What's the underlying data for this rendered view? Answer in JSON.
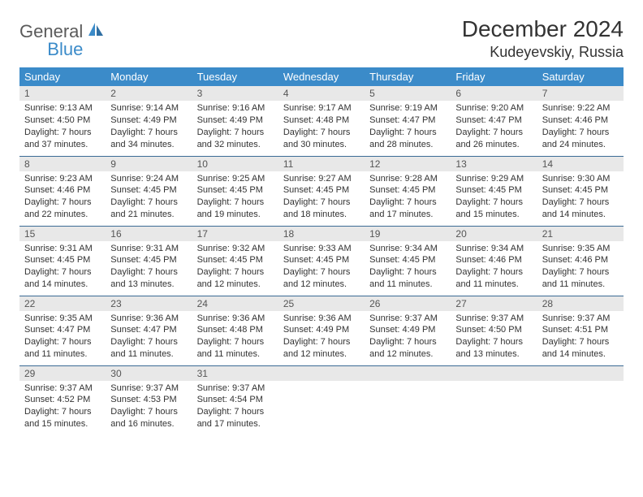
{
  "brand": {
    "part1": "General",
    "part2": "Blue"
  },
  "title": "December 2024",
  "location": "Kudeyevskiy, Russia",
  "colors": {
    "header_bg": "#3b8bc9",
    "header_text": "#ffffff",
    "daynum_bg": "#e8e8e8",
    "row_border": "#3b6b95",
    "logo_gray": "#5a5a5a",
    "logo_blue": "#3b8bc9"
  },
  "weekdays": [
    "Sunday",
    "Monday",
    "Tuesday",
    "Wednesday",
    "Thursday",
    "Friday",
    "Saturday"
  ],
  "weeks": [
    [
      {
        "n": "1",
        "sr": "Sunrise: 9:13 AM",
        "ss": "Sunset: 4:50 PM",
        "d1": "Daylight: 7 hours",
        "d2": "and 37 minutes."
      },
      {
        "n": "2",
        "sr": "Sunrise: 9:14 AM",
        "ss": "Sunset: 4:49 PM",
        "d1": "Daylight: 7 hours",
        "d2": "and 34 minutes."
      },
      {
        "n": "3",
        "sr": "Sunrise: 9:16 AM",
        "ss": "Sunset: 4:49 PM",
        "d1": "Daylight: 7 hours",
        "d2": "and 32 minutes."
      },
      {
        "n": "4",
        "sr": "Sunrise: 9:17 AM",
        "ss": "Sunset: 4:48 PM",
        "d1": "Daylight: 7 hours",
        "d2": "and 30 minutes."
      },
      {
        "n": "5",
        "sr": "Sunrise: 9:19 AM",
        "ss": "Sunset: 4:47 PM",
        "d1": "Daylight: 7 hours",
        "d2": "and 28 minutes."
      },
      {
        "n": "6",
        "sr": "Sunrise: 9:20 AM",
        "ss": "Sunset: 4:47 PM",
        "d1": "Daylight: 7 hours",
        "d2": "and 26 minutes."
      },
      {
        "n": "7",
        "sr": "Sunrise: 9:22 AM",
        "ss": "Sunset: 4:46 PM",
        "d1": "Daylight: 7 hours",
        "d2": "and 24 minutes."
      }
    ],
    [
      {
        "n": "8",
        "sr": "Sunrise: 9:23 AM",
        "ss": "Sunset: 4:46 PM",
        "d1": "Daylight: 7 hours",
        "d2": "and 22 minutes."
      },
      {
        "n": "9",
        "sr": "Sunrise: 9:24 AM",
        "ss": "Sunset: 4:45 PM",
        "d1": "Daylight: 7 hours",
        "d2": "and 21 minutes."
      },
      {
        "n": "10",
        "sr": "Sunrise: 9:25 AM",
        "ss": "Sunset: 4:45 PM",
        "d1": "Daylight: 7 hours",
        "d2": "and 19 minutes."
      },
      {
        "n": "11",
        "sr": "Sunrise: 9:27 AM",
        "ss": "Sunset: 4:45 PM",
        "d1": "Daylight: 7 hours",
        "d2": "and 18 minutes."
      },
      {
        "n": "12",
        "sr": "Sunrise: 9:28 AM",
        "ss": "Sunset: 4:45 PM",
        "d1": "Daylight: 7 hours",
        "d2": "and 17 minutes."
      },
      {
        "n": "13",
        "sr": "Sunrise: 9:29 AM",
        "ss": "Sunset: 4:45 PM",
        "d1": "Daylight: 7 hours",
        "d2": "and 15 minutes."
      },
      {
        "n": "14",
        "sr": "Sunrise: 9:30 AM",
        "ss": "Sunset: 4:45 PM",
        "d1": "Daylight: 7 hours",
        "d2": "and 14 minutes."
      }
    ],
    [
      {
        "n": "15",
        "sr": "Sunrise: 9:31 AM",
        "ss": "Sunset: 4:45 PM",
        "d1": "Daylight: 7 hours",
        "d2": "and 14 minutes."
      },
      {
        "n": "16",
        "sr": "Sunrise: 9:31 AM",
        "ss": "Sunset: 4:45 PM",
        "d1": "Daylight: 7 hours",
        "d2": "and 13 minutes."
      },
      {
        "n": "17",
        "sr": "Sunrise: 9:32 AM",
        "ss": "Sunset: 4:45 PM",
        "d1": "Daylight: 7 hours",
        "d2": "and 12 minutes."
      },
      {
        "n": "18",
        "sr": "Sunrise: 9:33 AM",
        "ss": "Sunset: 4:45 PM",
        "d1": "Daylight: 7 hours",
        "d2": "and 12 minutes."
      },
      {
        "n": "19",
        "sr": "Sunrise: 9:34 AM",
        "ss": "Sunset: 4:45 PM",
        "d1": "Daylight: 7 hours",
        "d2": "and 11 minutes."
      },
      {
        "n": "20",
        "sr": "Sunrise: 9:34 AM",
        "ss": "Sunset: 4:46 PM",
        "d1": "Daylight: 7 hours",
        "d2": "and 11 minutes."
      },
      {
        "n": "21",
        "sr": "Sunrise: 9:35 AM",
        "ss": "Sunset: 4:46 PM",
        "d1": "Daylight: 7 hours",
        "d2": "and 11 minutes."
      }
    ],
    [
      {
        "n": "22",
        "sr": "Sunrise: 9:35 AM",
        "ss": "Sunset: 4:47 PM",
        "d1": "Daylight: 7 hours",
        "d2": "and 11 minutes."
      },
      {
        "n": "23",
        "sr": "Sunrise: 9:36 AM",
        "ss": "Sunset: 4:47 PM",
        "d1": "Daylight: 7 hours",
        "d2": "and 11 minutes."
      },
      {
        "n": "24",
        "sr": "Sunrise: 9:36 AM",
        "ss": "Sunset: 4:48 PM",
        "d1": "Daylight: 7 hours",
        "d2": "and 11 minutes."
      },
      {
        "n": "25",
        "sr": "Sunrise: 9:36 AM",
        "ss": "Sunset: 4:49 PM",
        "d1": "Daylight: 7 hours",
        "d2": "and 12 minutes."
      },
      {
        "n": "26",
        "sr": "Sunrise: 9:37 AM",
        "ss": "Sunset: 4:49 PM",
        "d1": "Daylight: 7 hours",
        "d2": "and 12 minutes."
      },
      {
        "n": "27",
        "sr": "Sunrise: 9:37 AM",
        "ss": "Sunset: 4:50 PM",
        "d1": "Daylight: 7 hours",
        "d2": "and 13 minutes."
      },
      {
        "n": "28",
        "sr": "Sunrise: 9:37 AM",
        "ss": "Sunset: 4:51 PM",
        "d1": "Daylight: 7 hours",
        "d2": "and 14 minutes."
      }
    ],
    [
      {
        "n": "29",
        "sr": "Sunrise: 9:37 AM",
        "ss": "Sunset: 4:52 PM",
        "d1": "Daylight: 7 hours",
        "d2": "and 15 minutes."
      },
      {
        "n": "30",
        "sr": "Sunrise: 9:37 AM",
        "ss": "Sunset: 4:53 PM",
        "d1": "Daylight: 7 hours",
        "d2": "and 16 minutes."
      },
      {
        "n": "31",
        "sr": "Sunrise: 9:37 AM",
        "ss": "Sunset: 4:54 PM",
        "d1": "Daylight: 7 hours",
        "d2": "and 17 minutes."
      },
      {
        "n": "",
        "sr": "",
        "ss": "",
        "d1": "",
        "d2": ""
      },
      {
        "n": "",
        "sr": "",
        "ss": "",
        "d1": "",
        "d2": ""
      },
      {
        "n": "",
        "sr": "",
        "ss": "",
        "d1": "",
        "d2": ""
      },
      {
        "n": "",
        "sr": "",
        "ss": "",
        "d1": "",
        "d2": ""
      }
    ]
  ]
}
